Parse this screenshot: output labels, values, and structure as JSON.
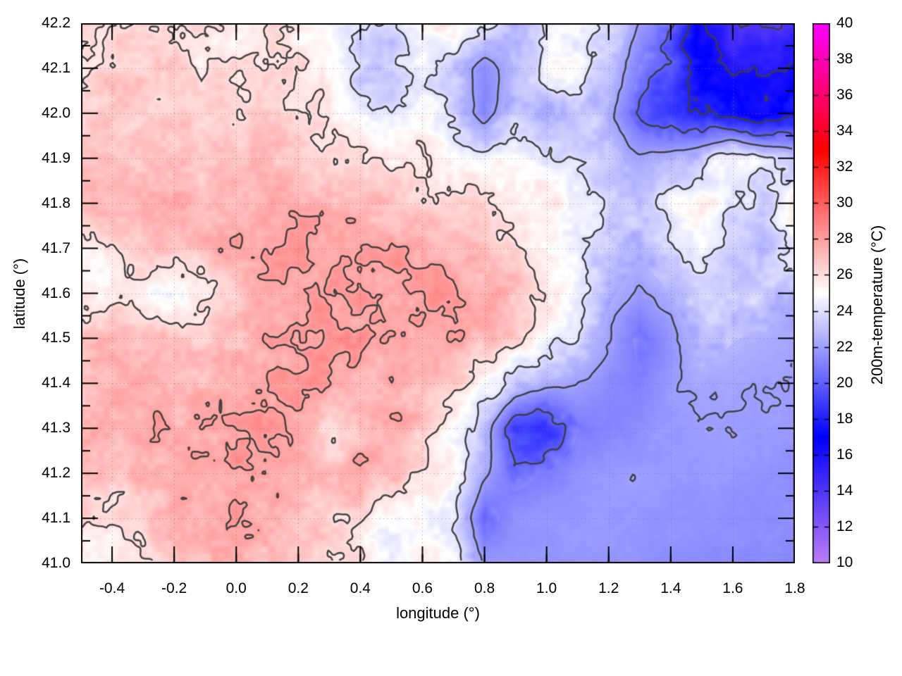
{
  "chart_data": {
    "type": "heatmap",
    "title": "",
    "xlabel": "longitude (°)",
    "ylabel": "latitude (°)",
    "cblabel": "200m-temperature (°C)",
    "xlim": [
      -0.5,
      1.8
    ],
    "ylim": [
      41.0,
      42.2
    ],
    "cblim": [
      10,
      40
    ],
    "grid_on": true,
    "x_tick_values": [
      -0.4,
      -0.2,
      0.0,
      0.2,
      0.4,
      0.6,
      0.8,
      1.0,
      1.2,
      1.4,
      1.6,
      1.8
    ],
    "x_tick_labels": [
      "-0.4",
      "-0.2",
      "0.0",
      "0.2",
      "0.4",
      "0.6",
      "0.8",
      "1.0",
      "1.2",
      "1.4",
      "1.6",
      "1.8"
    ],
    "x_minor_step": 0.1,
    "y_tick_values": [
      41.0,
      41.1,
      41.2,
      41.3,
      41.4,
      41.5,
      41.6,
      41.7,
      41.8,
      41.9,
      42.0,
      42.1,
      42.2
    ],
    "y_tick_labels": [
      "41.0",
      "41.1",
      "41.2",
      "41.3",
      "41.4",
      "41.5",
      "41.6",
      "41.7",
      "41.8",
      "41.9",
      "42.0",
      "42.1",
      "42.2"
    ],
    "y_minor_step": 0.05,
    "cb_tick_values": [
      10,
      12,
      14,
      16,
      18,
      20,
      22,
      24,
      26,
      28,
      30,
      32,
      34,
      36,
      38,
      40
    ],
    "cb_tick_labels": [
      "10",
      "12",
      "14",
      "16",
      "18",
      "20",
      "22",
      "24",
      "26",
      "28",
      "30",
      "32",
      "34",
      "36",
      "38",
      "40"
    ],
    "palette_stops": [
      {
        "v": 10,
        "color": "#bd7df6"
      },
      {
        "v": 17,
        "color": "#0000ff"
      },
      {
        "v": 25,
        "color": "#ffffff"
      },
      {
        "v": 33,
        "color": "#ff0000"
      },
      {
        "v": 40,
        "color": "#ff00ff"
      }
    ],
    "contour_levels": [
      14,
      16,
      18,
      20,
      22,
      24,
      26,
      28
    ],
    "contour_color": "#3c3c3c",
    "field_grid": {
      "lon_start": -0.5,
      "lon_step": 0.1,
      "nx": 24,
      "lat_start": 42.2,
      "lat_step": -0.1,
      "ny": 13,
      "values": [
        [
          25.9,
          26.1,
          26.0,
          25.8,
          25.7,
          25.6,
          25.9,
          25.5,
          24.9,
          23.8,
          23.6,
          24.9,
          25.9,
          24.2,
          22.8,
          24.2,
          25.2,
          23.8,
          22.0,
          20.3,
          16.2,
          14.2,
          13.8,
          14.8
        ],
        [
          26.4,
          26.5,
          26.4,
          26.2,
          26.1,
          26.2,
          26.1,
          25.9,
          25.2,
          23.5,
          23.2,
          24.6,
          23.2,
          21.4,
          22.6,
          25.0,
          24.6,
          23.2,
          20.8,
          19.2,
          17.0,
          15.5,
          15.8,
          16.2
        ],
        [
          26.6,
          26.7,
          26.6,
          26.5,
          26.4,
          26.5,
          26.4,
          26.3,
          26.0,
          24.6,
          24.2,
          25.2,
          23.6,
          21.2,
          23.4,
          22.2,
          23.8,
          22.4,
          20.2,
          18.4,
          18.0,
          17.2,
          16.8,
          17.4
        ],
        [
          26.8,
          27.0,
          27.1,
          27.0,
          26.9,
          27.1,
          27.2,
          26.9,
          26.7,
          26.3,
          25.6,
          25.8,
          25.2,
          24.6,
          25.0,
          24.4,
          24.0,
          23.0,
          22.2,
          22.6,
          23.4,
          25.2,
          24.0,
          23.2
        ],
        [
          27.0,
          27.2,
          27.4,
          27.3,
          27.1,
          27.4,
          27.6,
          27.3,
          27.5,
          27.2,
          26.9,
          26.6,
          26.2,
          26.4,
          26.0,
          25.6,
          24.6,
          23.4,
          23.0,
          24.6,
          25.6,
          24.2,
          23.2,
          25.8
        ],
        [
          25.2,
          26.0,
          26.6,
          26.9,
          27.3,
          27.7,
          27.9,
          28.1,
          28.0,
          27.9,
          28.1,
          27.7,
          27.3,
          26.9,
          26.6,
          25.4,
          24.2,
          23.6,
          22.8,
          23.4,
          24.6,
          23.2,
          22.6,
          24.6
        ],
        [
          25.8,
          25.6,
          25.2,
          25.0,
          25.4,
          26.6,
          27.5,
          28.0,
          28.3,
          28.1,
          27.9,
          28.2,
          28.0,
          27.6,
          26.9,
          25.8,
          24.6,
          22.8,
          21.8,
          22.6,
          23.8,
          23.2,
          23.6,
          22.3
        ],
        [
          26.6,
          26.9,
          27.1,
          26.8,
          26.6,
          27.0,
          27.6,
          28.1,
          28.2,
          28.0,
          27.7,
          28.0,
          27.8,
          27.2,
          26.4,
          25.2,
          23.6,
          22.0,
          20.6,
          21.6,
          23.0,
          22.6,
          22.4,
          22.1
        ],
        [
          27.0,
          27.3,
          27.6,
          27.4,
          27.2,
          27.6,
          27.9,
          28.3,
          28.0,
          27.4,
          27.8,
          27.4,
          26.6,
          25.2,
          23.4,
          22.4,
          22.0,
          21.4,
          21.0,
          21.8,
          22.3,
          22.1,
          22.0,
          21.9
        ],
        [
          27.2,
          27.5,
          27.8,
          27.6,
          27.8,
          28.2,
          28.4,
          28.0,
          25.6,
          27.0,
          27.4,
          26.8,
          25.4,
          23.0,
          19.0,
          18.6,
          20.8,
          21.2,
          21.4,
          21.8,
          22.0,
          22.0,
          21.9,
          21.8
        ],
        [
          26.8,
          27.1,
          27.4,
          27.7,
          27.9,
          28.1,
          27.8,
          27.4,
          27.2,
          27.6,
          27.0,
          26.2,
          25.0,
          22.4,
          20.4,
          21.0,
          21.6,
          21.8,
          21.9,
          21.8,
          21.8,
          21.7,
          21.6,
          21.5
        ],
        [
          26.2,
          25.4,
          26.6,
          27.2,
          27.6,
          27.8,
          27.4,
          27.0,
          26.6,
          26.0,
          24.6,
          24.6,
          24.6,
          20.2,
          21.6,
          21.8,
          21.8,
          21.8,
          21.7,
          21.6,
          21.6,
          21.5,
          21.5,
          21.4
        ],
        [
          24.8,
          25.8,
          26.4,
          26.8,
          27.4,
          27.6,
          27.2,
          26.8,
          26.4,
          25.6,
          24.2,
          25.8,
          24.4,
          22.0,
          21.7,
          21.7,
          21.7,
          21.6,
          21.6,
          21.5,
          21.5,
          21.4,
          21.4,
          21.3
        ]
      ]
    },
    "noise": {
      "coarse_scale": 28,
      "coarse_amp": 0.55,
      "fine_scale": 9,
      "fine_amp": 0.38,
      "quiet_low": 20.9,
      "quiet_high": 22.55,
      "quiet_factor": 0.22
    }
  },
  "layout_colors": {
    "grid_line": "rgba(120,120,120,0.55)",
    "border": "#000000"
  }
}
